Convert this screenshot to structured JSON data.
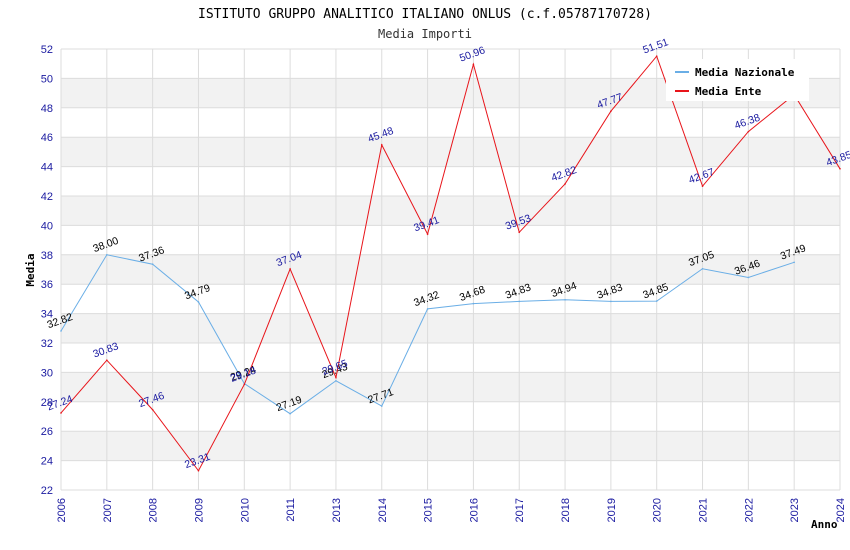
{
  "chart_data": {
    "type": "line",
    "title": "ISTITUTO GRUPPO ANALITICO ITALIANO ONLUS (c.f.05787170728)",
    "subtitle": "Media Importi",
    "xlabel": "Anno",
    "ylabel": "Media",
    "ylim": [
      22,
      52
    ],
    "ytick_step": 2,
    "grid": true,
    "legend_position": "top-right",
    "categories": [
      "2006",
      "2007",
      "2008",
      "2009",
      "2010",
      "2011",
      "2013",
      "2014",
      "2015",
      "2016",
      "2017",
      "2018",
      "2019",
      "2020",
      "2021",
      "2022",
      "2023",
      "2024"
    ],
    "series": [
      {
        "name": "Media Nazionale",
        "color": "#6aaee6",
        "label_color": "#000000",
        "values": [
          32.82,
          38.0,
          37.36,
          34.79,
          29.24,
          27.19,
          29.43,
          27.71,
          34.32,
          34.68,
          34.83,
          34.94,
          34.83,
          34.85,
          37.05,
          36.46,
          37.49,
          null
        ],
        "labels": [
          "32.82",
          "38.00",
          "37.36",
          "34.79",
          "29.24",
          "27.19",
          "29.43",
          "27.71",
          "34.32",
          "34.68",
          "34.83",
          "34.94",
          "34.83",
          "34.85",
          "37.05",
          "36.46",
          "37.49",
          ""
        ]
      },
      {
        "name": "Media Ente",
        "color": "#e8141a",
        "label_color": "#1a1aa0",
        "values": [
          27.24,
          30.83,
          27.46,
          23.31,
          29.18,
          37.04,
          29.65,
          45.48,
          39.41,
          50.96,
          39.53,
          42.82,
          47.77,
          51.51,
          42.67,
          46.38,
          48.9,
          43.85
        ],
        "labels": [
          "27.24",
          "30.83",
          "27.46",
          "23.31",
          "29.18",
          "37.04",
          "29.65",
          "45.48",
          "39.41",
          "50.96",
          "39.53",
          "42.82",
          "47.77",
          "51.51",
          "42.67",
          "46.38",
          "",
          "43.85"
        ]
      }
    ]
  }
}
